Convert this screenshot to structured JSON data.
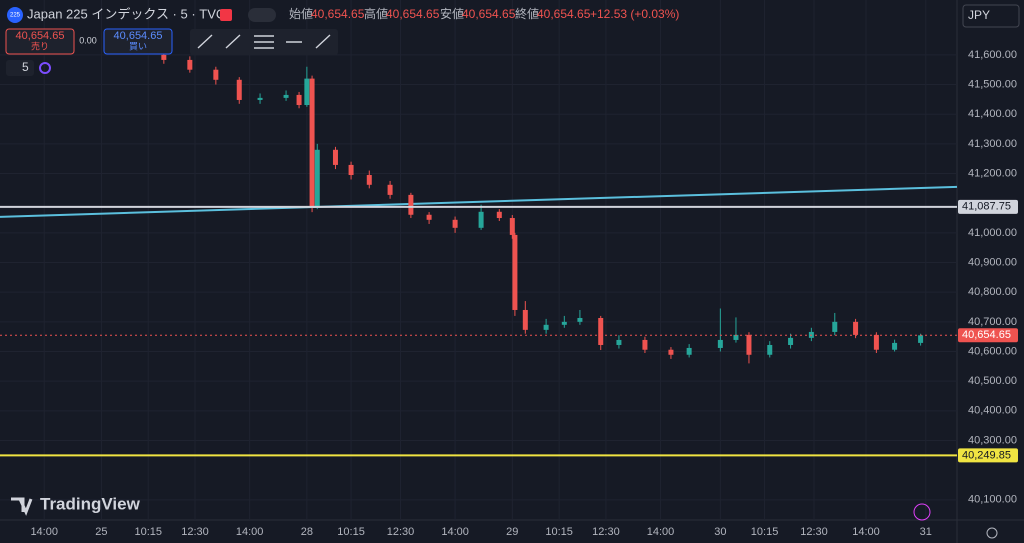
{
  "header": {
    "symbol_badge": "225",
    "symbol": "Japan 225 インデックス · 5 · TVC",
    "open_label": "始値",
    "open": "40,654.65",
    "high_label": "高値",
    "high": "40,654.65",
    "low_label": "安値",
    "low": "40,654.65",
    "close_label": "終値",
    "close": "40,654.65",
    "change": "+12.53 (+0.03%)",
    "sell_price": "40,654.65",
    "sell_label": "売り",
    "spread": "0.00",
    "buy_price": "40,654.65",
    "buy_label": "買い",
    "interval": "5",
    "currency": "JPY",
    "brand": "TradingView"
  },
  "chart_data": {
    "type": "candlestick",
    "up_color": "#26a69a",
    "down_color": "#ef5350",
    "x": [
      63,
      73,
      83,
      92,
      100,
      110,
      115,
      118,
      120,
      122,
      129,
      135,
      142,
      150,
      158,
      165,
      175,
      185,
      192,
      197,
      198,
      202,
      210,
      217,
      223,
      231,
      238,
      248,
      258,
      265,
      277,
      283,
      288,
      296,
      304,
      312,
      321,
      329,
      337,
      344,
      354
    ],
    "open": [
      41600,
      41583,
      41550,
      41516,
      41448,
      41455,
      41465,
      41431,
      41520,
      41090,
      41280,
      41229,
      41195,
      41162,
      41128,
      41061,
      41044,
      41017,
      41071,
      41050,
      40993,
      40740,
      40673,
      40690,
      40700,
      40713,
      40622,
      40639,
      40606,
      40589,
      40612,
      40639,
      40656,
      40589,
      40622,
      40646,
      40666,
      40700,
      40656,
      40606,
      40629
    ],
    "high": [
      41610,
      41595,
      41560,
      41525,
      41470,
      41480,
      41475,
      41560,
      41530,
      41300,
      41290,
      41240,
      41210,
      41175,
      41135,
      41070,
      41055,
      41095,
      41080,
      41060,
      41000,
      40770,
      40710,
      40720,
      40740,
      40720,
      40655,
      40650,
      40615,
      40625,
      40745,
      40715,
      40665,
      40635,
      40660,
      40680,
      40730,
      40710,
      40665,
      40640,
      40660
    ],
    "low": [
      41570,
      41540,
      41500,
      41435,
      41435,
      41445,
      41420,
      41425,
      41070,
      41080,
      41215,
      41180,
      41150,
      41115,
      41050,
      41030,
      41000,
      41010,
      41040,
      40980,
      40720,
      40660,
      40660,
      40680,
      40690,
      40605,
      40610,
      40595,
      40575,
      40580,
      40600,
      40630,
      40560,
      40580,
      40610,
      40635,
      40655,
      40645,
      40595,
      40600,
      40620
    ],
    "close": [
      41583,
      41550,
      41516,
      41448,
      41455,
      41465,
      41431,
      41520,
      41090,
      41280,
      41229,
      41195,
      41162,
      41128,
      41061,
      41044,
      41017,
      41071,
      41050,
      40993,
      40740,
      40673,
      40690,
      40700,
      40713,
      40622,
      40639,
      40606,
      40589,
      40612,
      40639,
      40656,
      40589,
      40622,
      40646,
      40666,
      40700,
      40656,
      40606,
      40629,
      40654.65
    ],
    "xlim": [
      0,
      368
    ],
    "xticks": [
      {
        "value": 17,
        "label": "14:00"
      },
      {
        "value": 39,
        "label": "25"
      },
      {
        "value": 57,
        "label": "10:15"
      },
      {
        "value": 75,
        "label": "12:30"
      },
      {
        "value": 96,
        "label": "14:00"
      },
      {
        "value": 118,
        "label": "28"
      },
      {
        "value": 135,
        "label": "10:15"
      },
      {
        "value": 154,
        "label": "12:30"
      },
      {
        "value": 175,
        "label": "14:00"
      },
      {
        "value": 197,
        "label": "29"
      },
      {
        "value": 215,
        "label": "10:15"
      },
      {
        "value": 233,
        "label": "12:30"
      },
      {
        "value": 254,
        "label": "14:00"
      },
      {
        "value": 277,
        "label": "30"
      },
      {
        "value": 294,
        "label": "10:15"
      },
      {
        "value": 313,
        "label": "12:30"
      },
      {
        "value": 333,
        "label": "14:00"
      },
      {
        "value": 356,
        "label": "31"
      }
    ],
    "ylim": [
      40032,
      41785
    ],
    "yticks": [
      {
        "value": 41600,
        "label": "41,600.00"
      },
      {
        "value": 41500,
        "label": "41,500.00"
      },
      {
        "value": 41400,
        "label": "41,400.00"
      },
      {
        "value": 41300,
        "label": "41,300.00"
      },
      {
        "value": 41200,
        "label": "41,200.00"
      },
      {
        "value": 41000,
        "label": "41,000.00"
      },
      {
        "value": 40900,
        "label": "40,900.00"
      },
      {
        "value": 40800,
        "label": "40,800.00"
      },
      {
        "value": 40700,
        "label": "40,700.00"
      },
      {
        "value": 40600,
        "label": "40,600.00"
      },
      {
        "value": 40500,
        "label": "40,500.00"
      },
      {
        "value": 40400,
        "label": "40,400.00"
      },
      {
        "value": 40300,
        "label": "40,300.00"
      },
      {
        "value": 40100,
        "label": "40,100.00"
      }
    ],
    "hlines": [
      {
        "value": 41087.75,
        "label": "41,087.75",
        "color": "#d1d4dc"
      },
      {
        "value": 40249.85,
        "label": "40,249.85",
        "color": "#f0e442"
      },
      {
        "value": 40654.65,
        "label": "40,654.65",
        "color": "#ef5350"
      }
    ],
    "trendline": {
      "x": [
        0,
        368
      ],
      "y": [
        41054,
        41155
      ],
      "color": "#5bc0de"
    }
  }
}
